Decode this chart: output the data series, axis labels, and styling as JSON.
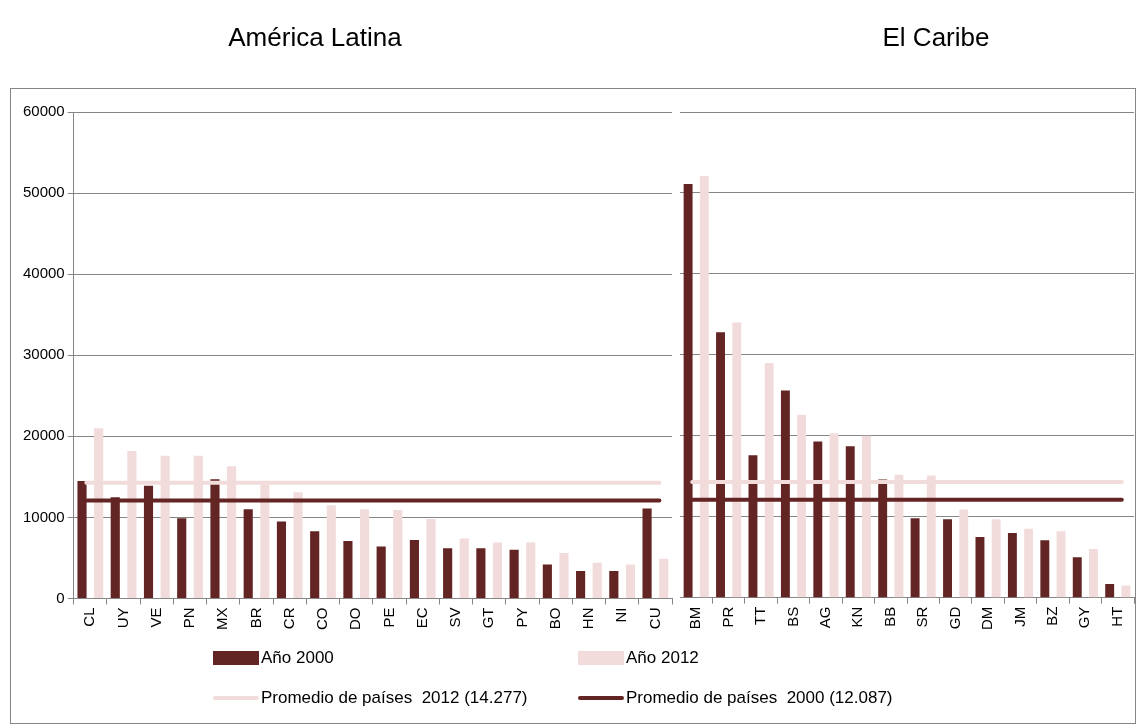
{
  "chart_data": [
    {
      "type": "bar",
      "title": "América Latina",
      "categories": [
        "CL",
        "UY",
        "VE",
        "PN",
        "MX",
        "BR",
        "CR",
        "CO",
        "DO",
        "PE",
        "EC",
        "SV",
        "GT",
        "PY",
        "BO",
        "HN",
        "NI",
        "CU"
      ],
      "series": [
        {
          "name": "Año 2000",
          "color": "#632523",
          "values": [
            14500,
            12500,
            13900,
            9900,
            14700,
            11000,
            9500,
            8300,
            7100,
            6400,
            7200,
            6200,
            6200,
            6000,
            4200,
            3400,
            3400,
            11100
          ]
        },
        {
          "name": "Año 2012",
          "color": "#f2dcdb",
          "values": [
            21000,
            18200,
            17600,
            17600,
            16300,
            14100,
            13100,
            11500,
            11000,
            10900,
            9800,
            7400,
            6900,
            6900,
            5600,
            4400,
            4200,
            4900
          ]
        }
      ],
      "ref_lines": [
        {
          "axis": "y",
          "value": 14277,
          "label": "Promedio de países  2012 (14.277)",
          "color": "#f2dcdb"
        },
        {
          "axis": "y",
          "value": 12087,
          "label": "Promedio de países  2000 (12.087)",
          "color": "#632523"
        }
      ],
      "ylim": [
        0,
        60000
      ],
      "yticks": [
        0,
        10000,
        20000,
        30000,
        40000,
        50000,
        60000
      ],
      "grid": "y",
      "legend": "bottom"
    },
    {
      "type": "bar",
      "title": "El Caribe",
      "categories": [
        "BM",
        "PR",
        "TT",
        "BS",
        "AG",
        "KN",
        "BB",
        "SR",
        "GD",
        "DM",
        "JM",
        "BZ",
        "GY",
        "HT"
      ],
      "series": [
        {
          "color": "#632523",
          "values": [
            51100,
            32800,
            17600,
            25600,
            19300,
            18700,
            14600,
            9800,
            9700,
            7500,
            8000,
            7100,
            5000,
            1700
          ]
        },
        {
          "color": "#f2dcdb",
          "values": [
            52100,
            34000,
            29000,
            22600,
            20300,
            20000,
            15200,
            15100,
            10900,
            9700,
            8500,
            8200,
            6000,
            1500
          ]
        }
      ],
      "ref_lines": [
        {
          "axis": "y",
          "value": 14277,
          "color": "#f2dcdb"
        },
        {
          "axis": "y",
          "value": 12087,
          "color": "#632523"
        }
      ],
      "ylim": [
        0,
        60000
      ],
      "yticks": [
        0,
        10000,
        20000,
        30000,
        40000,
        50000,
        60000
      ],
      "grid": "y",
      "tick_labels": "x"
    }
  ]
}
